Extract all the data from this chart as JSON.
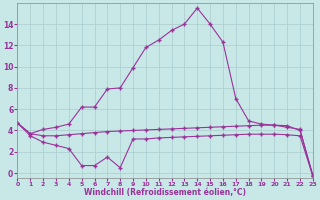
{
  "x": [
    0,
    1,
    2,
    3,
    4,
    5,
    6,
    7,
    8,
    9,
    10,
    11,
    12,
    13,
    14,
    15,
    16,
    17,
    18,
    19,
    20,
    21,
    22,
    23
  ],
  "line_top": [
    4.7,
    3.7,
    4.1,
    4.3,
    4.6,
    6.2,
    6.2,
    7.9,
    8.0,
    9.9,
    11.8,
    12.5,
    13.4,
    14.0,
    15.5,
    14.0,
    12.3,
    7.0,
    4.9,
    4.6,
    4.5,
    4.3,
    4.1,
    -0.3
  ],
  "line_mid": [
    4.7,
    3.7,
    3.5,
    3.5,
    3.6,
    3.7,
    3.8,
    3.9,
    3.95,
    4.0,
    4.05,
    4.1,
    4.15,
    4.2,
    4.25,
    4.3,
    4.35,
    4.4,
    4.45,
    4.5,
    4.5,
    4.45,
    4.0,
    -0.2
  ],
  "line_bot": [
    4.7,
    3.5,
    2.9,
    2.6,
    2.3,
    0.7,
    0.7,
    1.5,
    0.5,
    3.2,
    3.2,
    3.3,
    3.35,
    3.4,
    3.45,
    3.5,
    3.55,
    3.6,
    3.65,
    3.65,
    3.65,
    3.6,
    3.5,
    -0.3
  ],
  "background_color": "#c8e8e8",
  "line_color": "#993399",
  "grid_color": "#aacccc",
  "xlabel": "Windchill (Refroidissement éolien,°C)",
  "xlim": [
    0,
    23
  ],
  "ylim": [
    -0.5,
    16
  ],
  "yticks": [
    0,
    2,
    4,
    6,
    8,
    10,
    12,
    14
  ],
  "xticks": [
    0,
    1,
    2,
    3,
    4,
    5,
    6,
    7,
    8,
    9,
    10,
    11,
    12,
    13,
    14,
    15,
    16,
    17,
    18,
    19,
    20,
    21,
    22,
    23
  ]
}
